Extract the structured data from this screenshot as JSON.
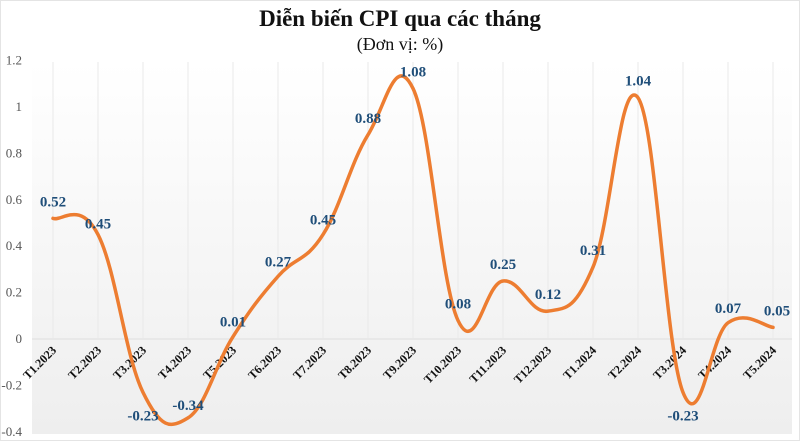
{
  "chart_data": {
    "type": "line",
    "title": "Diễn biến CPI qua các tháng",
    "subtitle": "(Đơn vị: %)",
    "xlabel": "",
    "ylabel": "",
    "categories": [
      "T1.2023",
      "T2.2023",
      "T3.2023",
      "T4.2023",
      "T5.2023",
      "T6.2023",
      "T7.2023",
      "T8.2023",
      "T9.2023",
      "T10.2023",
      "T11.2023",
      "T12.2023",
      "T1.2024",
      "T2.2024",
      "T3.2024",
      "T4.2024",
      "T5.2024"
    ],
    "series": [
      {
        "name": "CPI",
        "values": [
          0.52,
          0.45,
          -0.23,
          -0.34,
          0.01,
          0.27,
          0.45,
          0.88,
          1.08,
          0.08,
          0.25,
          0.12,
          0.31,
          1.04,
          -0.23,
          0.07,
          0.05
        ],
        "color": "#ed7d31",
        "smooth": true
      }
    ],
    "data_labels": [
      "0.52",
      "0.45",
      "-0.23",
      "-0.34",
      "0.01",
      "0.27",
      "0.45",
      "0.88",
      "1.08",
      "0.08",
      "0.25",
      "0.12",
      "0.31",
      "1.04",
      "-0.23",
      "0.07",
      "0.05"
    ],
    "yticks": [
      "1.2",
      "1",
      "0.8",
      "0.6",
      "0.4",
      "0.2",
      "0",
      "-0.2",
      "-0.4"
    ],
    "ylim": [
      -0.4,
      1.2
    ],
    "grid": "vertical light",
    "legend": "none",
    "label_color": "#1f4e79"
  }
}
